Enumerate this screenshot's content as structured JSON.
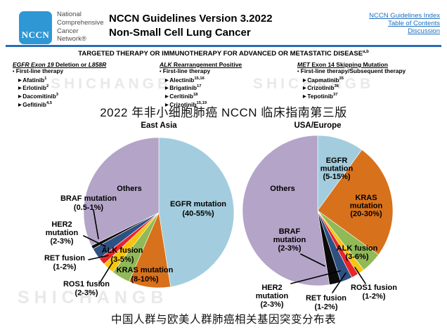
{
  "header": {
    "logo_text": "NCCN",
    "org_lines": [
      "National",
      "Comprehensive",
      "Cancer",
      "Network®"
    ],
    "title_line1": "NCCN Guidelines Version 3.2022",
    "title_line2": "Non-Small Cell Lung Cancer",
    "links": [
      "NCCN Guidelines Index",
      "Table of Contents",
      "Discussion"
    ]
  },
  "colors": {
    "logo_blue": "#2F97D4",
    "link_blue": "#1E6FBF",
    "rule_blue": "#2B6CB3"
  },
  "section": {
    "heading": "TARGETED THERAPY OR IMMUNOTHERAPY FOR ADVANCED OR METASTATIC DISEASE",
    "heading_sup": "a,b",
    "columns": [
      {
        "title_parts": [
          {
            "t": "EGFR Exon 19",
            "i": true
          },
          {
            "t": " Deletion or ",
            "i": false
          },
          {
            "t": "L858R",
            "i": true
          }
        ],
        "subtitle": "First-line therapy",
        "drugs": [
          {
            "name": "Afatinib",
            "sup": "1"
          },
          {
            "name": "Erlotinib",
            "sup": "2"
          },
          {
            "name": "Dacomitinib",
            "sup": "3"
          },
          {
            "name": "Gefitinib",
            "sup": "4,5"
          }
        ]
      },
      {
        "title_parts": [
          {
            "t": "ALK",
            "i": true
          },
          {
            "t": " Rearrangement Positive",
            "i": false
          }
        ],
        "subtitle": "First-line therapy",
        "drugs": [
          {
            "name": "Alectinib",
            "sup": "15,16"
          },
          {
            "name": "Brigatinib",
            "sup": "17"
          },
          {
            "name": "Ceritinib",
            "sup": "18"
          },
          {
            "name": "Crizotinib",
            "sup": "15,19"
          }
        ]
      },
      {
        "title_parts": [
          {
            "t": "MET",
            "i": true
          },
          {
            "t": " Exon 14 Skipping Mutation",
            "i": false
          }
        ],
        "subtitle": "First-line therapy/Subsequent therapy",
        "drugs": [
          {
            "name": "Capmatinib",
            "sup": "35"
          },
          {
            "name": "Crizotinib",
            "sup": "36"
          },
          {
            "name": "Tepotinib",
            "sup": "37"
          }
        ]
      }
    ]
  },
  "captions": {
    "top": "2022 年非小细胞肺癌 NCCN 临床指南第三版",
    "bottom": "中国人群与欧美人群肺癌相关基因突变分布表"
  },
  "watermark": "SHICHANGB",
  "chart_data": [
    {
      "type": "pie",
      "title": "East Asia",
      "slices": [
        {
          "label": "EGFR mutation",
          "range": "(40-55%)",
          "value": 47.5,
          "color": "#A3CDDE"
        },
        {
          "label": "KRAS mutation",
          "range": "(8-10%)",
          "value": 9,
          "color": "#D8711C"
        },
        {
          "label": "ALK fusion",
          "range": "(3-5%)",
          "value": 4,
          "color": "#90B957"
        },
        {
          "label": "ROS1 fusion",
          "range": "(2-3%)",
          "value": 2.5,
          "color": "#F5C50F"
        },
        {
          "label": "RET fusion",
          "range": "(1-2%)",
          "value": 1.5,
          "color": "#E92429"
        },
        {
          "label": "HER2 mutation",
          "range": "(2-3%)",
          "value": 2.5,
          "color": "#2E5184"
        },
        {
          "label": "BRAF mutation",
          "range": "(0.5-1%)",
          "value": 0.75,
          "color": "#0B0B0B"
        },
        {
          "label": "Others",
          "range": "",
          "value": 32.25,
          "color": "#B3A4C8"
        }
      ]
    },
    {
      "type": "pie",
      "title": "USA/Europe",
      "slices": [
        {
          "label": "EGFR mutation",
          "range": "(5-15%)",
          "value": 10,
          "color": "#A3CDDE"
        },
        {
          "label": "KRAS mutation",
          "range": "(20-30%)",
          "value": 25,
          "color": "#D8711C"
        },
        {
          "label": "ALK fusion",
          "range": "(3-6%)",
          "value": 4.5,
          "color": "#90B957"
        },
        {
          "label": "ROS1 fusion",
          "range": "(1-2%)",
          "value": 1.5,
          "color": "#F5C50F"
        },
        {
          "label": "RET fusion",
          "range": "(1-2%)",
          "value": 1.5,
          "color": "#E92429"
        },
        {
          "label": "HER2 mutation",
          "range": "(2-3%)",
          "value": 2.5,
          "color": "#2E5184"
        },
        {
          "label": "BRAF mutation",
          "range": "(2-3%)",
          "value": 2.5,
          "color": "#0B0B0B"
        },
        {
          "label": "Others",
          "range": "",
          "value": 52.5,
          "color": "#B3A4C8"
        }
      ]
    }
  ]
}
